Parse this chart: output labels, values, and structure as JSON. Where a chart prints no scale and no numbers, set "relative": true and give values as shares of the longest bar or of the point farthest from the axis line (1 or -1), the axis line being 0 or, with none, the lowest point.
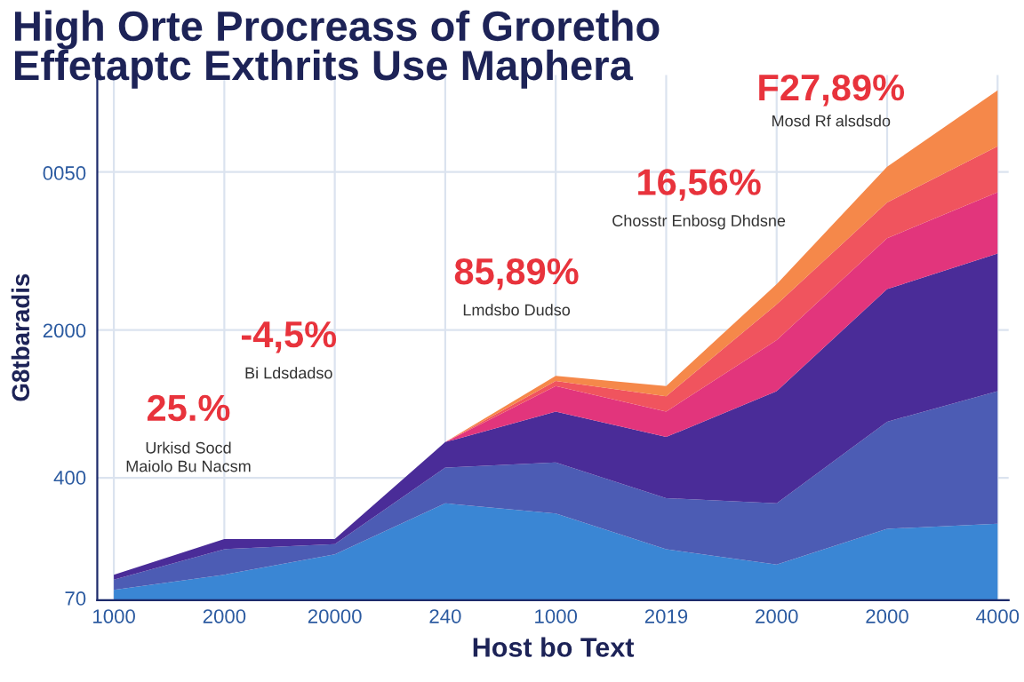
{
  "chart_data": {
    "type": "area",
    "stacked": true,
    "relative": true,
    "title": "High Orte Procreass of Groretho\nEffetaptc Exthrits Use Maphera",
    "xlabel": "Host bo Text",
    "ylabel": "G8tbaradis",
    "categories": [
      "1000",
      "2000",
      "20000",
      "240",
      "1000",
      "2019",
      "2000",
      "2000",
      "4000"
    ],
    "series": [
      {
        "color": "#3a86d4",
        "values": [
          0.02,
          0.05,
          0.09,
          0.19,
          0.17,
          0.1,
          0.07,
          0.14,
          0.15
        ]
      },
      {
        "color": "#4c5cb4",
        "values": [
          0.02,
          0.05,
          0.02,
          0.07,
          0.1,
          0.1,
          0.12,
          0.21,
          0.26
        ]
      },
      {
        "color": "#4a2c98",
        "values": [
          0.01,
          0.02,
          0.01,
          0.05,
          0.1,
          0.12,
          0.22,
          0.26,
          0.27
        ]
      },
      {
        "color": "#e2357c",
        "values": [
          0,
          0,
          0,
          0,
          0.05,
          0.05,
          0.1,
          0.1,
          0.12
        ]
      },
      {
        "color": "#f0545e",
        "values": [
          0,
          0,
          0,
          0,
          0.01,
          0.03,
          0.07,
          0.07,
          0.09
        ]
      },
      {
        "color": "#f5884a",
        "values": [
          0,
          0,
          0,
          0,
          0.01,
          0.02,
          0.04,
          0.07,
          0.11
        ]
      }
    ],
    "grid": true,
    "annotations": [
      "25.%",
      "Urkisd Socd\nMaiolo Bu Nacsm",
      "-4,5%",
      "Bi Ldsdadso",
      "85,89%",
      "Lmdsbo Dudso",
      "16,56%",
      "Chosstr Enbosg Dhdsne",
      "F27,89%",
      "Mosd Rf alsdsdo",
      "70",
      "400",
      "2000",
      "0050"
    ]
  }
}
